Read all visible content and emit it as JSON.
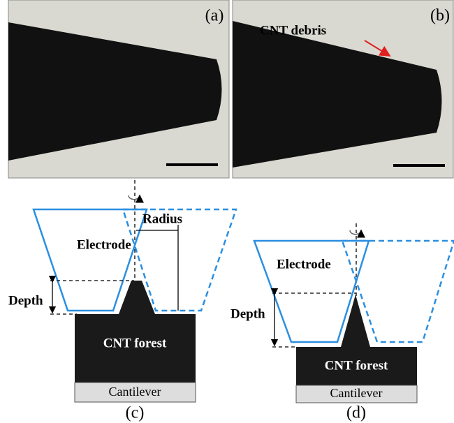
{
  "panels": {
    "a": {
      "label": "(a)"
    },
    "b": {
      "label": "(b)",
      "annotation": "CNT debris"
    },
    "c": {
      "label": "(c)",
      "electrode": "Electrode",
      "radius": "Radius",
      "depth": "Depth",
      "forest": "CNT forest",
      "base": "Cantilever"
    },
    "d": {
      "label": "(d)",
      "electrode": "Electrode",
      "depth": "Depth",
      "forest": "CNT forest",
      "base": "Cantilever"
    }
  }
}
